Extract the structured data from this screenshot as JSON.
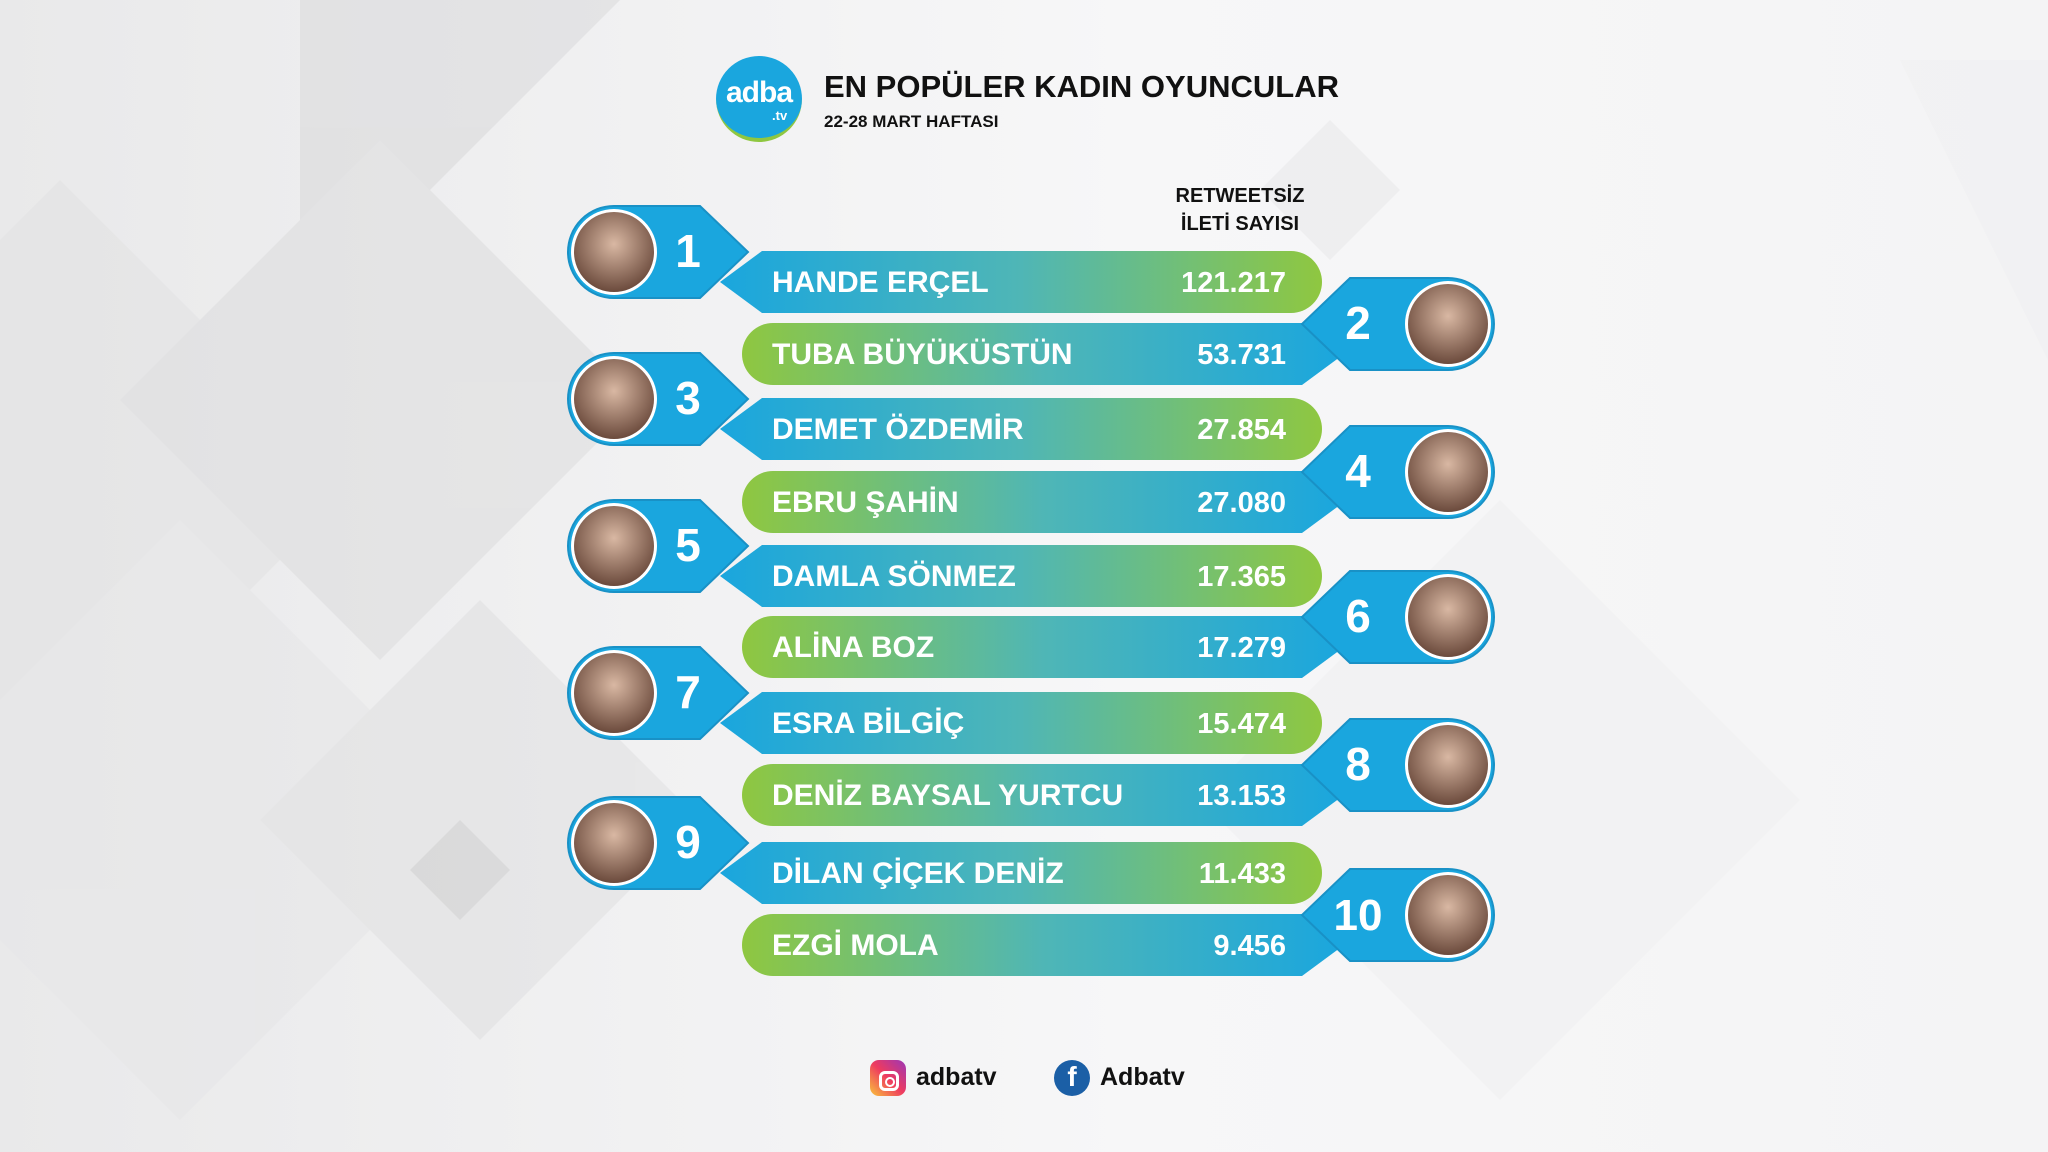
{
  "header": {
    "logo_text": "adba",
    "logo_sub": ".tv",
    "title": "EN POPÜLER KADIN OYUNCULAR",
    "subtitle": "22-28 MART HAFTASI"
  },
  "column_header": {
    "line1": "RETWEETSİZ",
    "line2": "İLETİ SAYISI"
  },
  "colors": {
    "blue": "#1aa6de",
    "green": "#8fc740",
    "bubble_border": "#1991c6"
  },
  "chart_data": {
    "type": "table",
    "title": "EN POPÜLER KADIN OYUNCULAR",
    "subtitle": "22-28 MART HAFTASI",
    "value_label": "RETWEETSİZ İLETİ SAYISI",
    "rows": [
      {
        "rank": "1",
        "name": "HANDE ERÇEL",
        "value": 121217,
        "value_text": "121.217"
      },
      {
        "rank": "2",
        "name": "TUBA BÜYÜKÜSTÜN",
        "value": 53731,
        "value_text": "53.731"
      },
      {
        "rank": "3",
        "name": "DEMET ÖZDEMİR",
        "value": 27854,
        "value_text": "27.854"
      },
      {
        "rank": "4",
        "name": "EBRU ŞAHİN",
        "value": 27080,
        "value_text": "27.080"
      },
      {
        "rank": "5",
        "name": "DAMLA SÖNMEZ",
        "value": 17365,
        "value_text": "17.365"
      },
      {
        "rank": "6",
        "name": "ALİNA BOZ",
        "value": 17279,
        "value_text": "17.279"
      },
      {
        "rank": "7",
        "name": "ESRA BİLGİÇ",
        "value": 15474,
        "value_text": "15.474"
      },
      {
        "rank": "8",
        "name": "DENİZ BAYSAL YURTCU",
        "value": 13153,
        "value_text": "13.153"
      },
      {
        "rank": "9",
        "name": "DİLAN ÇİÇEK DENİZ",
        "value": 11433,
        "value_text": "11.433"
      },
      {
        "rank": "10",
        "name": "EZGİ MOLA",
        "value": 9456,
        "value_text": "9.456"
      }
    ]
  },
  "social": {
    "instagram": {
      "icon": "instagram-icon",
      "label": "adbatv"
    },
    "facebook": {
      "icon": "facebook-icon",
      "label": "Adbatv"
    }
  }
}
